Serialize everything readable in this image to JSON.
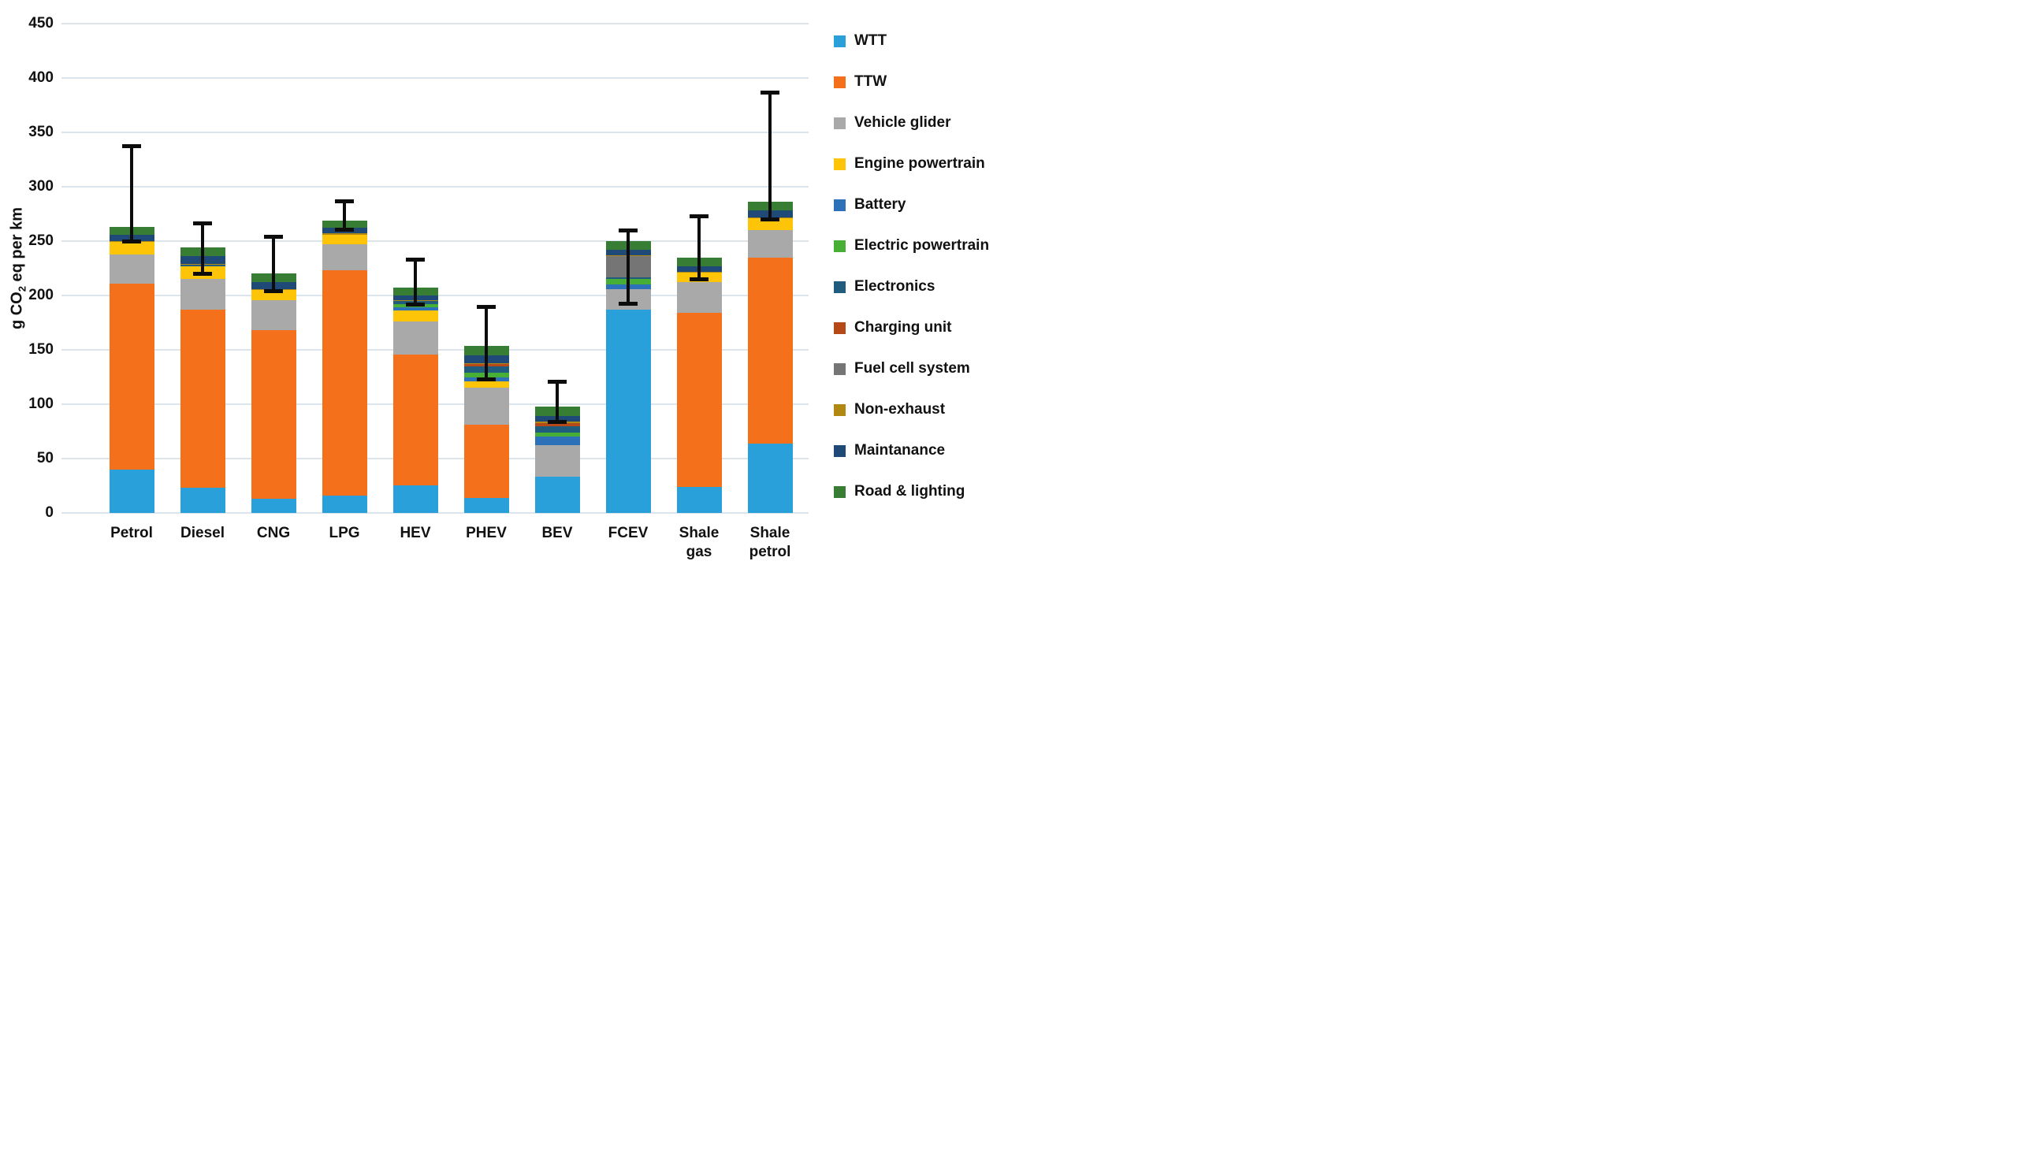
{
  "chart_data": {
    "type": "bar",
    "stacked": true,
    "title": "",
    "ylabel_parts": {
      "prefix": "g CO",
      "sub": "2",
      "suffix": " eq per km"
    },
    "ylim": [
      0,
      450
    ],
    "ytick_step": 50,
    "yticks": [
      0,
      50,
      100,
      150,
      200,
      250,
      300,
      350,
      400,
      450
    ],
    "grid": true,
    "legend_position": "right",
    "categories": [
      "Petrol",
      "Diesel",
      "CNG",
      "LPG",
      "HEV",
      "PHEV",
      "BEV",
      "FCEV",
      "Shale gas",
      "Shale petrol"
    ],
    "category_lines": [
      [
        "Petrol"
      ],
      [
        "Diesel"
      ],
      [
        "CNG"
      ],
      [
        "LPG"
      ],
      [
        "HEV"
      ],
      [
        "PHEV"
      ],
      [
        "BEV"
      ],
      [
        "FCEV"
      ],
      [
        "Shale",
        "gas"
      ],
      [
        "Shale",
        "petrol"
      ]
    ],
    "series": [
      {
        "name": "WTT",
        "color": "#2AA0DA",
        "values": [
          40,
          23,
          13,
          16,
          25,
          14,
          33,
          187,
          24,
          64
        ]
      },
      {
        "name": "TTW",
        "color": "#F4701B",
        "values": [
          171,
          164,
          155,
          207,
          121,
          67,
          0,
          0,
          160,
          171
        ]
      },
      {
        "name": "Vehicle glider",
        "color": "#A9A9A9",
        "values": [
          27,
          28,
          28,
          24,
          30,
          34,
          29,
          19,
          28,
          25
        ]
      },
      {
        "name": "Engine powertrain",
        "color": "#FDC408",
        "values": [
          11,
          12,
          9,
          9,
          10,
          6,
          0,
          0,
          9,
          11
        ]
      },
      {
        "name": "Battery",
        "color": "#2D71B8",
        "values": [
          0,
          0,
          0,
          0,
          3,
          4,
          8,
          4,
          0,
          0
        ]
      },
      {
        "name": "Electric powertrain",
        "color": "#47AF35",
        "values": [
          0,
          0,
          0,
          0,
          3,
          4,
          4,
          5,
          0,
          0
        ]
      },
      {
        "name": "Electronics",
        "color": "#1F5C7E",
        "values": [
          0,
          1,
          0,
          0,
          3,
          6,
          6,
          2,
          0,
          0
        ]
      },
      {
        "name": "Charging unit",
        "color": "#B54A18",
        "values": [
          0,
          0,
          0,
          0,
          0,
          2,
          3,
          0,
          0,
          0
        ]
      },
      {
        "name": "Fuel cell system",
        "color": "#757575",
        "values": [
          0,
          0,
          0,
          0,
          0,
          0,
          0,
          19,
          0,
          0
        ]
      },
      {
        "name": "Non-exhaust",
        "color": "#B08812",
        "values": [
          1,
          1,
          1,
          1,
          1,
          1,
          1,
          1,
          1,
          1
        ]
      },
      {
        "name": "Maintanance",
        "color": "#1F4977",
        "values": [
          6,
          7,
          6,
          5,
          4,
          7,
          5,
          5,
          5,
          6
        ]
      },
      {
        "name": "Road & lighting",
        "color": "#377D33",
        "values": [
          7,
          8,
          8,
          7,
          7,
          9,
          9,
          8,
          8,
          8
        ]
      }
    ],
    "totals": [
      263,
      244,
      220,
      269,
      207,
      154,
      98,
      250,
      235,
      286
    ],
    "error_bars": {
      "low": [
        250,
        220,
        204,
        261,
        192,
        123,
        84,
        193,
        215,
        270
      ],
      "high": [
        338,
        267,
        254,
        287,
        233,
        190,
        121,
        260,
        273,
        387
      ]
    },
    "colors": {
      "gridline": "#dce5eb",
      "error_bar": "#0c0c0c",
      "text": "#111111",
      "background": "#ffffff"
    }
  }
}
